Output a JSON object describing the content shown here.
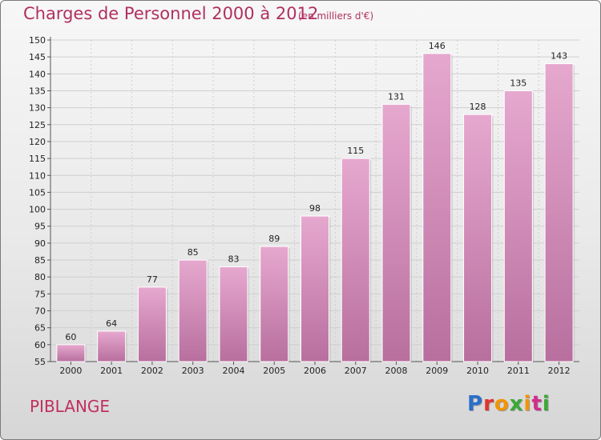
{
  "header": {
    "title": "Charges de Personnel 2000 à 2012",
    "unit_note": "(en milliers d'€)"
  },
  "footer": {
    "commune": "PIBLANGE",
    "logo_text": "Proxiti"
  },
  "colors": {
    "bar_light": "#e6a8cf",
    "bar_dark": "#b86f9e",
    "title": "#b03060",
    "grid": "#cfcfcf"
  },
  "chart_data": {
    "type": "bar",
    "title": "Charges de Personnel 2000 à 2012",
    "subtitle": "(en milliers d'€)",
    "xlabel": "",
    "ylabel": "",
    "categories": [
      "2000",
      "2001",
      "2002",
      "2003",
      "2004",
      "2005",
      "2006",
      "2007",
      "2008",
      "2009",
      "2010",
      "2011",
      "2012"
    ],
    "values": [
      60,
      64,
      77,
      85,
      83,
      89,
      98,
      115,
      131,
      146,
      128,
      135,
      143
    ],
    "ylim": [
      55,
      150
    ],
    "ytick_step": 5,
    "grid": true
  }
}
